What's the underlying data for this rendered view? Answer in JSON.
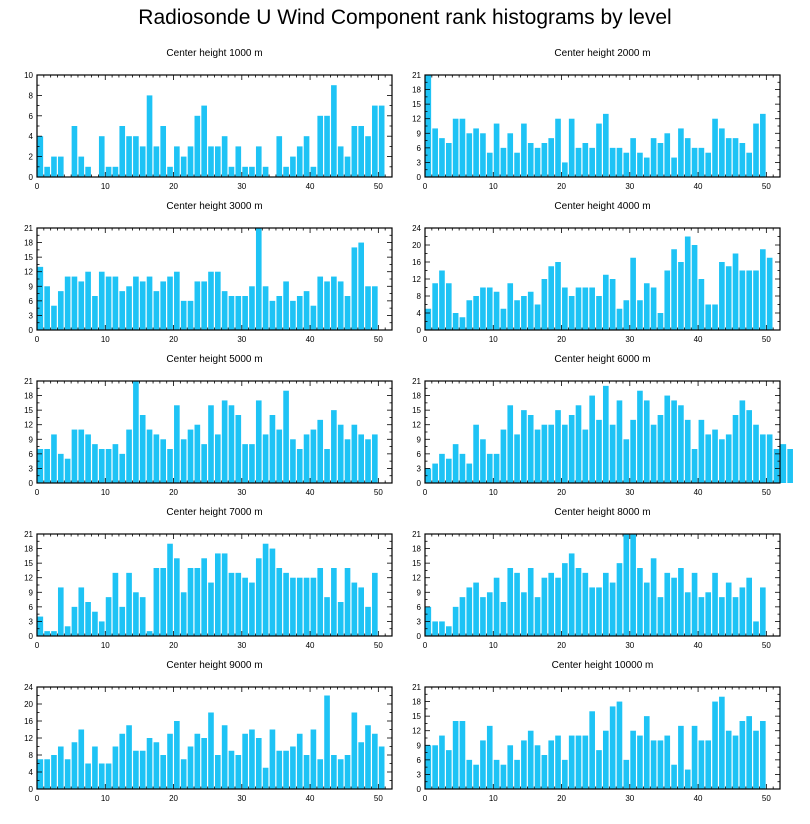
{
  "title": "Radiosonde U Wind Component rank histograms by level",
  "colors": {
    "bar": "#1ec3f5",
    "axis": "#000000"
  },
  "chart_data": [
    {
      "type": "bar",
      "title": "Center height 1000 m",
      "xlim": [
        0,
        52
      ],
      "xticks": [
        0,
        10,
        20,
        30,
        40,
        50
      ],
      "ylim": [
        0,
        10
      ],
      "yticks": [
        0,
        2,
        4,
        6,
        8,
        10
      ],
      "values": [
        4,
        1,
        2,
        2,
        0,
        5,
        2,
        1,
        0,
        4,
        1,
        1,
        5,
        4,
        4,
        3,
        8,
        3,
        5,
        1,
        3,
        2,
        3,
        6,
        7,
        3,
        3,
        4,
        1,
        3,
        1,
        1,
        3,
        1,
        0,
        4,
        1,
        2,
        3,
        4,
        1,
        6,
        6,
        9,
        3,
        2,
        5,
        5,
        4,
        7,
        7
      ]
    },
    {
      "type": "bar",
      "title": "Center height 2000 m",
      "xlim": [
        0,
        52
      ],
      "xticks": [
        0,
        10,
        20,
        30,
        40,
        50
      ],
      "ylim": [
        0,
        21
      ],
      "yticks": [
        0,
        3,
        6,
        9,
        12,
        15,
        18,
        21
      ],
      "values": [
        21,
        10,
        8,
        7,
        12,
        12,
        9,
        10,
        9,
        5,
        11,
        6,
        9,
        5,
        11,
        7,
        6,
        7,
        8,
        12,
        3,
        12,
        6,
        7,
        6,
        11,
        13,
        6,
        6,
        5,
        8,
        5,
        4,
        8,
        7,
        9,
        4,
        10,
        8,
        6,
        6,
        5,
        12,
        10,
        8,
        8,
        7,
        5,
        11,
        13
      ]
    },
    {
      "type": "bar",
      "title": "Center height 3000 m",
      "xlim": [
        0,
        52
      ],
      "xticks": [
        0,
        10,
        20,
        30,
        40,
        50
      ],
      "ylim": [
        0,
        21
      ],
      "yticks": [
        0,
        3,
        6,
        9,
        12,
        15,
        18,
        21
      ],
      "values": [
        13,
        9,
        5,
        8,
        11,
        11,
        10,
        12,
        7,
        12,
        11,
        11,
        8,
        9,
        11,
        10,
        11,
        8,
        10,
        11,
        12,
        6,
        6,
        10,
        10,
        12,
        12,
        8,
        7,
        7,
        7,
        9,
        21,
        9,
        6,
        7,
        10,
        6,
        7,
        8,
        5,
        11,
        10,
        11,
        10,
        7,
        17,
        18,
        9,
        9
      ]
    },
    {
      "type": "bar",
      "title": "Center height 4000 m",
      "xlim": [
        0,
        52
      ],
      "xticks": [
        0,
        10,
        20,
        30,
        40,
        50
      ],
      "ylim": [
        0,
        24
      ],
      "yticks": [
        0,
        4,
        8,
        12,
        16,
        20,
        24
      ],
      "values": [
        5,
        11,
        14,
        11,
        4,
        3,
        7,
        8,
        10,
        10,
        9,
        5,
        11,
        7,
        8,
        9,
        6,
        12,
        15,
        16,
        10,
        8,
        10,
        10,
        10,
        8,
        13,
        12,
        5,
        7,
        17,
        7,
        11,
        10,
        4,
        14,
        19,
        16,
        22,
        20,
        12,
        6,
        6,
        16,
        15,
        18,
        14,
        14,
        14,
        19,
        17
      ]
    },
    {
      "type": "bar",
      "title": "Center height 5000 m",
      "xlim": [
        0,
        52
      ],
      "xticks": [
        0,
        10,
        20,
        30,
        40,
        50
      ],
      "ylim": [
        0,
        21
      ],
      "yticks": [
        0,
        3,
        6,
        9,
        12,
        15,
        18,
        21
      ],
      "values": [
        7,
        7,
        10,
        6,
        5,
        11,
        11,
        10,
        8,
        7,
        7,
        8,
        6,
        11,
        21,
        14,
        11,
        10,
        9,
        7,
        16,
        9,
        11,
        12,
        8,
        16,
        10,
        17,
        16,
        14,
        8,
        8,
        17,
        10,
        14,
        11,
        19,
        9,
        7,
        10,
        11,
        13,
        7,
        15,
        12,
        9,
        12,
        10,
        9,
        10
      ]
    },
    {
      "type": "bar",
      "title": "Center height 6000 m",
      "xlim": [
        0,
        52
      ],
      "xticks": [
        0,
        10,
        20,
        30,
        40,
        50
      ],
      "ylim": [
        0,
        21
      ],
      "yticks": [
        0,
        3,
        6,
        9,
        12,
        15,
        18,
        21
      ],
      "values": [
        3,
        4,
        6,
        5,
        8,
        6,
        4,
        12,
        9,
        6,
        6,
        11,
        16,
        10,
        15,
        14,
        11,
        12,
        12,
        15,
        12,
        14,
        16,
        11,
        18,
        13,
        20,
        12,
        17,
        9,
        13,
        19,
        17,
        12,
        14,
        18,
        17,
        16,
        13,
        7,
        13,
        10,
        11,
        9,
        10,
        14,
        17,
        15,
        12,
        10,
        10,
        7,
        8,
        7
      ]
    },
    {
      "type": "bar",
      "title": "Center height 7000 m",
      "xlim": [
        0,
        52
      ],
      "xticks": [
        0,
        10,
        20,
        30,
        40,
        50
      ],
      "ylim": [
        0,
        21
      ],
      "yticks": [
        0,
        3,
        6,
        9,
        12,
        15,
        18,
        21
      ],
      "values": [
        4,
        1,
        1,
        10,
        2,
        6,
        10,
        7,
        5,
        3,
        8,
        13,
        6,
        13,
        9,
        8,
        1,
        14,
        14,
        19,
        16,
        9,
        14,
        14,
        16,
        11,
        17,
        17,
        13,
        13,
        12,
        11,
        16,
        19,
        18,
        14,
        13,
        12,
        12,
        12,
        12,
        14,
        8,
        14,
        7,
        14,
        11,
        10,
        6,
        13
      ]
    },
    {
      "type": "bar",
      "title": "Center height 8000 m",
      "xlim": [
        0,
        52
      ],
      "xticks": [
        0,
        10,
        20,
        30,
        40,
        50
      ],
      "ylim": [
        0,
        21
      ],
      "yticks": [
        0,
        3,
        6,
        9,
        12,
        15,
        18,
        21
      ],
      "values": [
        6,
        3,
        3,
        2,
        6,
        8,
        10,
        11,
        8,
        9,
        12,
        7,
        14,
        13,
        9,
        14,
        8,
        12,
        13,
        12,
        15,
        17,
        14,
        13,
        10,
        10,
        13,
        11,
        15,
        21,
        21,
        14,
        11,
        16,
        8,
        13,
        12,
        14,
        9,
        13,
        8,
        9,
        13,
        8,
        11,
        8,
        10,
        12,
        3,
        10
      ]
    },
    {
      "type": "bar",
      "title": "Center height 9000 m",
      "xlim": [
        0,
        52
      ],
      "xticks": [
        0,
        10,
        20,
        30,
        40,
        50
      ],
      "ylim": [
        0,
        24
      ],
      "yticks": [
        0,
        4,
        8,
        12,
        16,
        20,
        24
      ],
      "values": [
        7,
        7,
        8,
        10,
        7,
        11,
        14,
        6,
        10,
        6,
        6,
        10,
        13,
        15,
        9,
        9,
        12,
        11,
        8,
        13,
        16,
        7,
        10,
        13,
        12,
        18,
        8,
        15,
        9,
        8,
        13,
        14,
        12,
        5,
        14,
        9,
        9,
        10,
        13,
        8,
        14,
        7,
        22,
        8,
        7,
        8,
        18,
        11,
        15,
        13,
        10
      ]
    },
    {
      "type": "bar",
      "title": "Center height 10000 m",
      "xlim": [
        0,
        52
      ],
      "xticks": [
        0,
        10,
        20,
        30,
        40,
        50
      ],
      "ylim": [
        0,
        21
      ],
      "yticks": [
        0,
        3,
        6,
        9,
        12,
        15,
        18,
        21
      ],
      "values": [
        9,
        9,
        11,
        8,
        14,
        14,
        6,
        5,
        10,
        13,
        6,
        5,
        9,
        6,
        10,
        12,
        9,
        7,
        10,
        11,
        6,
        11,
        11,
        11,
        16,
        8,
        12,
        17,
        18,
        6,
        12,
        11,
        15,
        10,
        10,
        11,
        5,
        13,
        4,
        13,
        10,
        10,
        18,
        19,
        12,
        11,
        14,
        15,
        12,
        14
      ]
    }
  ]
}
